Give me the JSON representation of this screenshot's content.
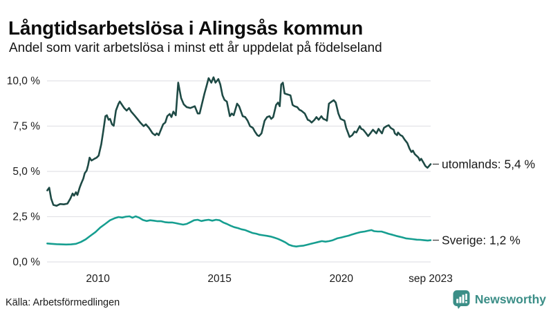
{
  "header": {
    "title": "Långtidsarbetslösa i Alingsås kommun",
    "subtitle": "Andel som varit arbetslösa i minst ett år uppdelat på födelseland"
  },
  "footer": {
    "source": "Källa: Arbetsförmedlingen",
    "brand": "Newsworthy"
  },
  "colors": {
    "series_utomlands": "#1e4a45",
    "series_sverige": "#169e90",
    "grid": "#e2e2e7",
    "tick_text": "#1a1a1a",
    "label_text": "#1a1a1a",
    "connector": "#4d4d4d",
    "brand_teal": "#3b8e87"
  },
  "chart_data": {
    "type": "line",
    "title": "Långtidsarbetslösa i Alingsås kommun",
    "subtitle": "Andel som varit arbetslösa i minst ett år uppdelat på födelseland",
    "xlabel": "",
    "ylabel": "",
    "grid": true,
    "legend_position": "right-end-labels",
    "xlim": [
      2007.91,
      2023.67
    ],
    "ylim": [
      0,
      10
    ],
    "y_ticks": [
      {
        "v": 0,
        "label": "0,0 %"
      },
      {
        "v": 2.5,
        "label": "2,5 %"
      },
      {
        "v": 5,
        "label": "5,0 %"
      },
      {
        "v": 7.5,
        "label": "7,5 %"
      },
      {
        "v": 10,
        "label": "10,0 %"
      }
    ],
    "x_ticks": [
      {
        "t": 2010,
        "label": "2010"
      },
      {
        "t": 2015,
        "label": "2015"
      },
      {
        "t": 2020,
        "label": "2020"
      },
      {
        "t": 2023.67,
        "label": "sep 2023"
      }
    ],
    "series": [
      {
        "name": "utomlands",
        "end_label": "utomlands: 5,4 %",
        "end_value": 5.4,
        "color": "#1e4a45",
        "points": [
          [
            2007.92,
            3.95
          ],
          [
            2008.0,
            4.1
          ],
          [
            2008.08,
            3.5
          ],
          [
            2008.17,
            3.15
          ],
          [
            2008.3,
            3.1
          ],
          [
            2008.45,
            3.2
          ],
          [
            2008.6,
            3.18
          ],
          [
            2008.75,
            3.22
          ],
          [
            2008.87,
            3.5
          ],
          [
            2008.96,
            3.78
          ],
          [
            2009.02,
            3.66
          ],
          [
            2009.1,
            3.85
          ],
          [
            2009.16,
            3.7
          ],
          [
            2009.25,
            4.1
          ],
          [
            2009.32,
            4.35
          ],
          [
            2009.4,
            4.6
          ],
          [
            2009.46,
            4.9
          ],
          [
            2009.54,
            5.05
          ],
          [
            2009.6,
            5.35
          ],
          [
            2009.66,
            5.76
          ],
          [
            2009.74,
            5.6
          ],
          [
            2009.86,
            5.7
          ],
          [
            2009.95,
            5.76
          ],
          [
            2010.03,
            5.87
          ],
          [
            2010.14,
            6.5
          ],
          [
            2010.22,
            7.2
          ],
          [
            2010.31,
            8.05
          ],
          [
            2010.37,
            8.1
          ],
          [
            2010.44,
            7.85
          ],
          [
            2010.5,
            7.9
          ],
          [
            2010.58,
            7.6
          ],
          [
            2010.65,
            7.52
          ],
          [
            2010.74,
            8.36
          ],
          [
            2010.85,
            8.74
          ],
          [
            2010.9,
            8.86
          ],
          [
            2011.0,
            8.66
          ],
          [
            2011.08,
            8.5
          ],
          [
            2011.18,
            8.36
          ],
          [
            2011.28,
            8.5
          ],
          [
            2011.37,
            8.3
          ],
          [
            2011.5,
            8.1
          ],
          [
            2011.62,
            7.9
          ],
          [
            2011.74,
            7.7
          ],
          [
            2011.88,
            7.5
          ],
          [
            2011.97,
            7.6
          ],
          [
            2012.1,
            7.4
          ],
          [
            2012.25,
            7.1
          ],
          [
            2012.35,
            7.0
          ],
          [
            2012.42,
            7.1
          ],
          [
            2012.5,
            7.0
          ],
          [
            2012.68,
            7.6
          ],
          [
            2012.77,
            7.7
          ],
          [
            2012.85,
            8.05
          ],
          [
            2012.95,
            8.17
          ],
          [
            2013.02,
            8.0
          ],
          [
            2013.1,
            8.3
          ],
          [
            2013.2,
            8.1
          ],
          [
            2013.3,
            9.9
          ],
          [
            2013.42,
            9.05
          ],
          [
            2013.53,
            8.7
          ],
          [
            2013.65,
            8.55
          ],
          [
            2013.8,
            8.5
          ],
          [
            2013.98,
            8.6
          ],
          [
            2014.1,
            8.2
          ],
          [
            2014.18,
            8.2
          ],
          [
            2014.38,
            9.3
          ],
          [
            2014.46,
            9.7
          ],
          [
            2014.55,
            10.15
          ],
          [
            2014.66,
            9.9
          ],
          [
            2014.75,
            10.2
          ],
          [
            2014.83,
            9.9
          ],
          [
            2014.95,
            10.1
          ],
          [
            2015.03,
            9.8
          ],
          [
            2015.12,
            9.2
          ],
          [
            2015.2,
            8.95
          ],
          [
            2015.3,
            8.85
          ],
          [
            2015.42,
            8.05
          ],
          [
            2015.5,
            8.2
          ],
          [
            2015.58,
            8.1
          ],
          [
            2015.72,
            8.74
          ],
          [
            2015.8,
            8.6
          ],
          [
            2015.95,
            8.05
          ],
          [
            2016.05,
            8.0
          ],
          [
            2016.15,
            7.8
          ],
          [
            2016.25,
            7.5
          ],
          [
            2016.37,
            7.4
          ],
          [
            2016.45,
            7.2
          ],
          [
            2016.55,
            7.0
          ],
          [
            2016.62,
            6.95
          ],
          [
            2016.72,
            7.1
          ],
          [
            2016.85,
            7.8
          ],
          [
            2016.95,
            8.0
          ],
          [
            2017.05,
            8.05
          ],
          [
            2017.12,
            7.9
          ],
          [
            2017.2,
            8.0
          ],
          [
            2017.32,
            8.67
          ],
          [
            2017.4,
            8.8
          ],
          [
            2017.47,
            8.6
          ],
          [
            2017.53,
            9.8
          ],
          [
            2017.6,
            9.9
          ],
          [
            2017.67,
            9.3
          ],
          [
            2017.8,
            9.25
          ],
          [
            2017.91,
            9.2
          ],
          [
            2018.0,
            8.67
          ],
          [
            2018.08,
            8.6
          ],
          [
            2018.19,
            8.55
          ],
          [
            2018.28,
            8.4
          ],
          [
            2018.36,
            8.35
          ],
          [
            2018.5,
            8.2
          ],
          [
            2018.62,
            7.85
          ],
          [
            2018.7,
            7.8
          ],
          [
            2018.78,
            7.7
          ],
          [
            2018.9,
            7.85
          ],
          [
            2018.98,
            8.0
          ],
          [
            2019.07,
            7.85
          ],
          [
            2019.18,
            8.05
          ],
          [
            2019.26,
            7.9
          ],
          [
            2019.35,
            7.85
          ],
          [
            2019.41,
            7.8
          ],
          [
            2019.49,
            8.74
          ],
          [
            2019.6,
            8.85
          ],
          [
            2019.69,
            8.93
          ],
          [
            2019.77,
            8.8
          ],
          [
            2019.88,
            8.2
          ],
          [
            2019.97,
            7.9
          ],
          [
            2020.05,
            7.85
          ],
          [
            2020.13,
            7.8
          ],
          [
            2020.2,
            7.4
          ],
          [
            2020.27,
            7.15
          ],
          [
            2020.34,
            6.9
          ],
          [
            2020.45,
            7.0
          ],
          [
            2020.54,
            7.2
          ],
          [
            2020.62,
            7.15
          ],
          [
            2020.7,
            7.35
          ],
          [
            2020.76,
            7.5
          ],
          [
            2020.82,
            7.35
          ],
          [
            2020.9,
            7.3
          ],
          [
            2021.02,
            7.1
          ],
          [
            2021.1,
            6.95
          ],
          [
            2021.19,
            7.1
          ],
          [
            2021.3,
            7.3
          ],
          [
            2021.44,
            7.1
          ],
          [
            2021.53,
            7.35
          ],
          [
            2021.61,
            7.2
          ],
          [
            2021.67,
            7.1
          ],
          [
            2021.75,
            7.4
          ],
          [
            2021.86,
            7.5
          ],
          [
            2021.95,
            7.55
          ],
          [
            2022.03,
            7.4
          ],
          [
            2022.15,
            7.3
          ],
          [
            2022.2,
            7.1
          ],
          [
            2022.29,
            7.0
          ],
          [
            2022.33,
            7.15
          ],
          [
            2022.43,
            7.0
          ],
          [
            2022.51,
            6.95
          ],
          [
            2022.6,
            6.76
          ],
          [
            2022.71,
            6.57
          ],
          [
            2022.8,
            6.26
          ],
          [
            2022.88,
            6.07
          ],
          [
            2022.94,
            6.15
          ],
          [
            2023.02,
            5.95
          ],
          [
            2023.17,
            5.76
          ],
          [
            2023.22,
            5.6
          ],
          [
            2023.28,
            5.7
          ],
          [
            2023.37,
            5.5
          ],
          [
            2023.45,
            5.3
          ],
          [
            2023.54,
            5.2
          ],
          [
            2023.67,
            5.4
          ]
        ]
      },
      {
        "name": "Sverige",
        "end_label": "Sverige: 1,2 %",
        "end_value": 1.2,
        "color": "#169e90",
        "points": [
          [
            2007.92,
            1.02
          ],
          [
            2008.1,
            1.0
          ],
          [
            2008.3,
            0.98
          ],
          [
            2008.5,
            0.97
          ],
          [
            2008.7,
            0.96
          ],
          [
            2008.9,
            0.97
          ],
          [
            2009.1,
            1.0
          ],
          [
            2009.3,
            1.1
          ],
          [
            2009.5,
            1.25
          ],
          [
            2009.7,
            1.45
          ],
          [
            2009.9,
            1.65
          ],
          [
            2010.1,
            1.9
          ],
          [
            2010.3,
            2.1
          ],
          [
            2010.5,
            2.3
          ],
          [
            2010.7,
            2.42
          ],
          [
            2010.85,
            2.48
          ],
          [
            2011.0,
            2.45
          ],
          [
            2011.15,
            2.5
          ],
          [
            2011.3,
            2.52
          ],
          [
            2011.42,
            2.44
          ],
          [
            2011.55,
            2.52
          ],
          [
            2011.7,
            2.44
          ],
          [
            2011.85,
            2.32
          ],
          [
            2012.0,
            2.26
          ],
          [
            2012.15,
            2.3
          ],
          [
            2012.3,
            2.28
          ],
          [
            2012.45,
            2.25
          ],
          [
            2012.6,
            2.25
          ],
          [
            2012.75,
            2.2
          ],
          [
            2012.9,
            2.18
          ],
          [
            2013.05,
            2.18
          ],
          [
            2013.2,
            2.14
          ],
          [
            2013.35,
            2.1
          ],
          [
            2013.5,
            2.06
          ],
          [
            2013.65,
            2.1
          ],
          [
            2013.8,
            2.2
          ],
          [
            2013.95,
            2.3
          ],
          [
            2014.1,
            2.33
          ],
          [
            2014.25,
            2.26
          ],
          [
            2014.4,
            2.3
          ],
          [
            2014.55,
            2.33
          ],
          [
            2014.7,
            2.28
          ],
          [
            2014.85,
            2.33
          ],
          [
            2015.0,
            2.3
          ],
          [
            2015.15,
            2.18
          ],
          [
            2015.3,
            2.1
          ],
          [
            2015.45,
            2.0
          ],
          [
            2015.6,
            1.92
          ],
          [
            2015.75,
            1.87
          ],
          [
            2015.9,
            1.8
          ],
          [
            2016.05,
            1.76
          ],
          [
            2016.2,
            1.68
          ],
          [
            2016.35,
            1.6
          ],
          [
            2016.5,
            1.56
          ],
          [
            2016.65,
            1.5
          ],
          [
            2016.8,
            1.47
          ],
          [
            2016.95,
            1.44
          ],
          [
            2017.1,
            1.4
          ],
          [
            2017.25,
            1.34
          ],
          [
            2017.4,
            1.27
          ],
          [
            2017.55,
            1.18
          ],
          [
            2017.7,
            1.08
          ],
          [
            2017.85,
            0.95
          ],
          [
            2018.0,
            0.88
          ],
          [
            2018.15,
            0.85
          ],
          [
            2018.3,
            0.88
          ],
          [
            2018.45,
            0.9
          ],
          [
            2018.6,
            0.95
          ],
          [
            2018.75,
            1.0
          ],
          [
            2018.9,
            1.05
          ],
          [
            2019.05,
            1.1
          ],
          [
            2019.2,
            1.15
          ],
          [
            2019.35,
            1.12
          ],
          [
            2019.5,
            1.15
          ],
          [
            2019.65,
            1.2
          ],
          [
            2019.83,
            1.3
          ],
          [
            2020.0,
            1.35
          ],
          [
            2020.15,
            1.4
          ],
          [
            2020.3,
            1.45
          ],
          [
            2020.45,
            1.52
          ],
          [
            2020.6,
            1.58
          ],
          [
            2020.8,
            1.65
          ],
          [
            2020.96,
            1.68
          ],
          [
            2021.1,
            1.72
          ],
          [
            2021.24,
            1.76
          ],
          [
            2021.35,
            1.7
          ],
          [
            2021.5,
            1.68
          ],
          [
            2021.65,
            1.68
          ],
          [
            2021.8,
            1.62
          ],
          [
            2021.95,
            1.55
          ],
          [
            2022.1,
            1.5
          ],
          [
            2022.25,
            1.44
          ],
          [
            2022.37,
            1.4
          ],
          [
            2022.5,
            1.36
          ],
          [
            2022.65,
            1.3
          ],
          [
            2022.8,
            1.28
          ],
          [
            2022.93,
            1.26
          ],
          [
            2023.1,
            1.23
          ],
          [
            2023.25,
            1.22
          ],
          [
            2023.4,
            1.2
          ],
          [
            2023.55,
            1.18
          ],
          [
            2023.67,
            1.2
          ]
        ]
      }
    ]
  }
}
